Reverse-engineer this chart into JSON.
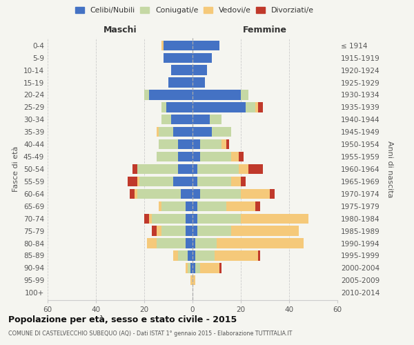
{
  "age_groups": [
    "0-4",
    "5-9",
    "10-14",
    "15-19",
    "20-24",
    "25-29",
    "30-34",
    "35-39",
    "40-44",
    "45-49",
    "50-54",
    "55-59",
    "60-64",
    "65-69",
    "70-74",
    "75-79",
    "80-84",
    "85-89",
    "90-94",
    "95-99",
    "100+"
  ],
  "birth_years": [
    "2010-2014",
    "2005-2009",
    "2000-2004",
    "1995-1999",
    "1990-1994",
    "1985-1989",
    "1980-1984",
    "1975-1979",
    "1970-1974",
    "1965-1969",
    "1960-1964",
    "1955-1959",
    "1950-1954",
    "1945-1949",
    "1940-1944",
    "1935-1939",
    "1930-1934",
    "1925-1929",
    "1920-1924",
    "1915-1919",
    "≤ 1914"
  ],
  "male": {
    "celibe": [
      12,
      12,
      9,
      10,
      18,
      11,
      9,
      8,
      6,
      6,
      6,
      8,
      5,
      3,
      3,
      3,
      3,
      2,
      1,
      0,
      0
    ],
    "coniugato": [
      0,
      0,
      0,
      0,
      2,
      2,
      4,
      6,
      8,
      9,
      17,
      14,
      18,
      10,
      14,
      10,
      12,
      4,
      1,
      0,
      0
    ],
    "vedovo": [
      1,
      0,
      0,
      0,
      0,
      0,
      0,
      1,
      0,
      0,
      0,
      1,
      1,
      1,
      1,
      2,
      4,
      2,
      1,
      1,
      0
    ],
    "divorziato": [
      0,
      0,
      0,
      0,
      0,
      0,
      0,
      0,
      0,
      0,
      2,
      4,
      2,
      0,
      2,
      2,
      0,
      0,
      0,
      0,
      0
    ]
  },
  "female": {
    "nubile": [
      11,
      8,
      6,
      5,
      20,
      22,
      7,
      8,
      3,
      3,
      2,
      2,
      3,
      2,
      2,
      2,
      1,
      1,
      1,
      0,
      0
    ],
    "coniugata": [
      0,
      0,
      0,
      0,
      3,
      4,
      5,
      8,
      9,
      13,
      17,
      14,
      17,
      12,
      18,
      14,
      9,
      8,
      2,
      0,
      0
    ],
    "vedova": [
      0,
      0,
      0,
      0,
      0,
      1,
      0,
      0,
      2,
      3,
      4,
      4,
      12,
      12,
      28,
      28,
      36,
      18,
      8,
      1,
      0
    ],
    "divorziata": [
      0,
      0,
      0,
      0,
      0,
      2,
      0,
      0,
      1,
      2,
      6,
      2,
      2,
      2,
      0,
      0,
      0,
      1,
      1,
      0,
      0
    ]
  },
  "color_celibe": "#4472c4",
  "color_coniugato": "#c5d8a4",
  "color_vedovo": "#f5c97a",
  "color_divorziato": "#c0392b",
  "xlim": 60,
  "title": "Popolazione per età, sesso e stato civile - 2015",
  "subtitle": "COMUNE DI CASTELVECCHIO SUBEQUO (AQ) - Dati ISTAT 1° gennaio 2015 - Elaborazione TUTTITALIA.IT",
  "ylabel_left": "Fasce di età",
  "ylabel_right": "Anni di nascita",
  "bg_color": "#f5f5f0",
  "grid_color": "#cccccc"
}
